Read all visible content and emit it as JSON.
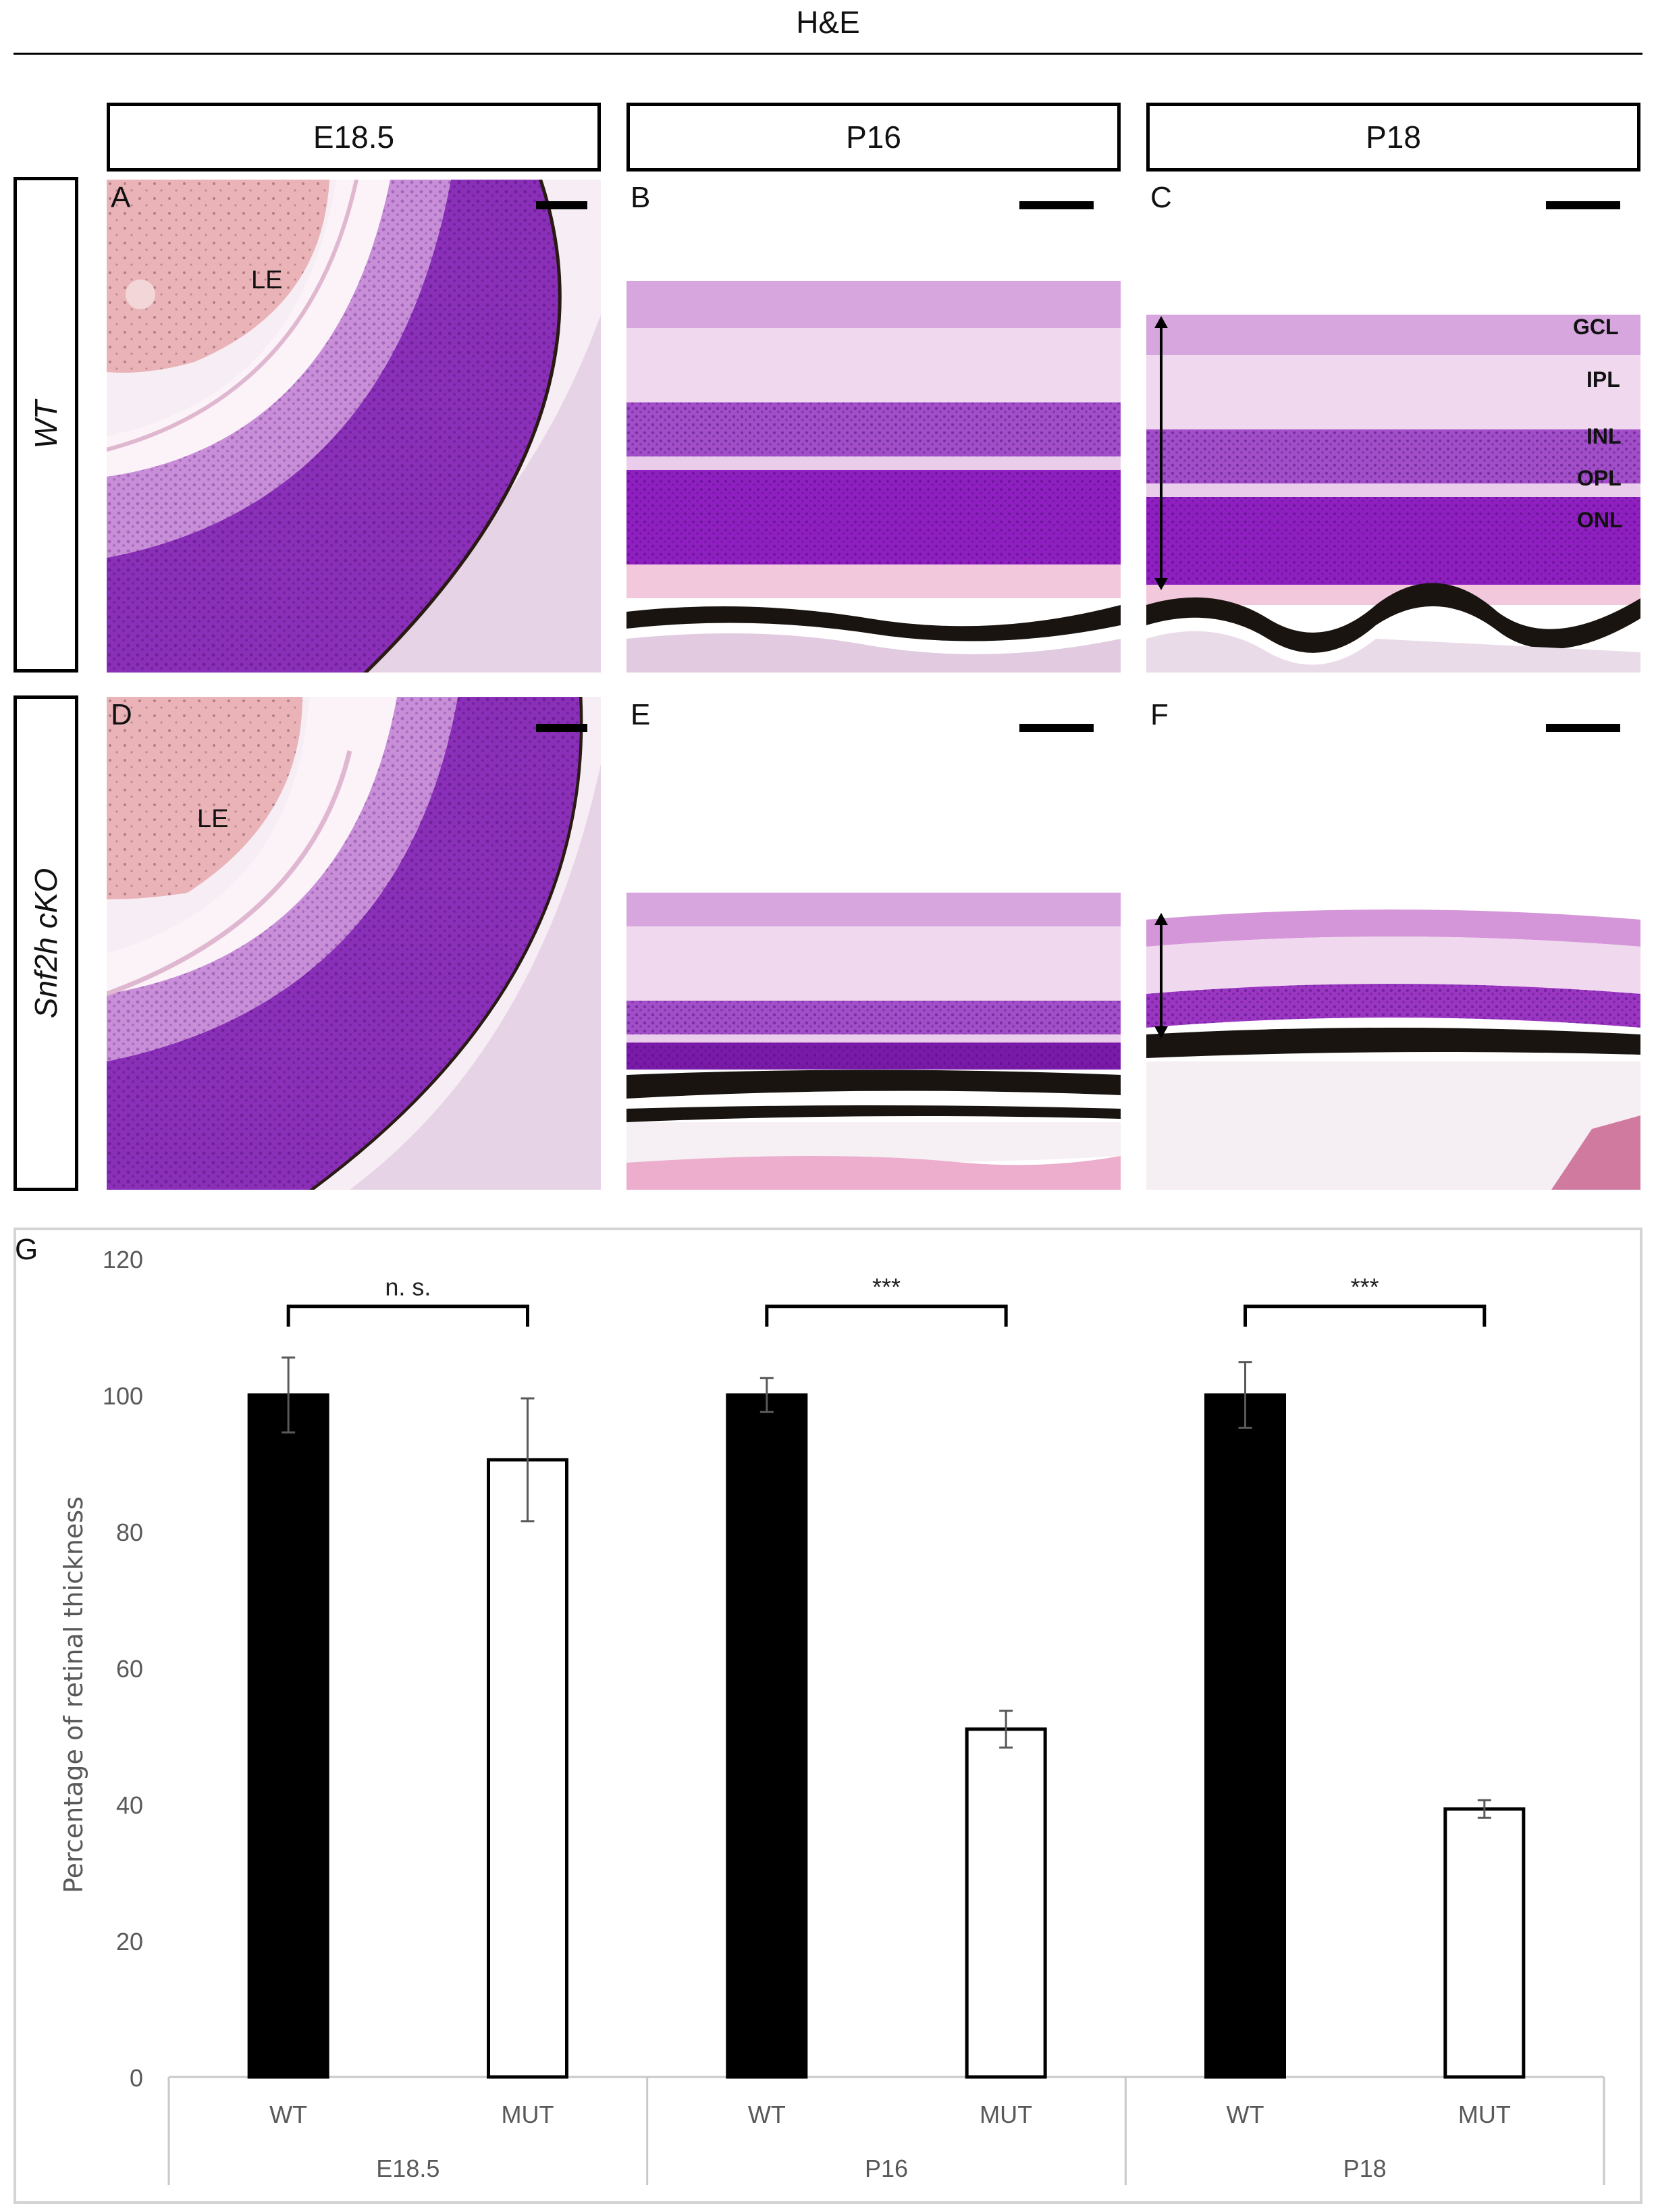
{
  "figure": {
    "title": "H&E",
    "columns": [
      "E18.5",
      "P16",
      "P18"
    ],
    "rows": [
      "WT",
      "Snf2h cKO"
    ],
    "panel_labels": [
      "A",
      "B",
      "C",
      "D",
      "E",
      "F"
    ],
    "lens_label": "LE",
    "layer_labels": [
      "GCL",
      "IPL",
      "INL",
      "OPL",
      "ONL"
    ]
  },
  "chart_label": "G",
  "chart_data": {
    "type": "bar",
    "ylabel": "Percentage of retinal thickness",
    "xlabel": "",
    "ylim": [
      0,
      120
    ],
    "yticks": [
      0,
      20,
      40,
      60,
      80,
      100,
      120
    ],
    "groups": [
      "E18.5",
      "P16",
      "P18"
    ],
    "bars": [
      {
        "group": "E18.5",
        "label": "WT",
        "value": 100,
        "error": 5.5,
        "fill": "#000000"
      },
      {
        "group": "E18.5",
        "label": "MUT",
        "value": 90.5,
        "error": 9.0,
        "fill": "#ffffff"
      },
      {
        "group": "P16",
        "label": "WT",
        "value": 100,
        "error": 2.5,
        "fill": "#000000"
      },
      {
        "group": "P16",
        "label": "MUT",
        "value": 51,
        "error": 2.7,
        "fill": "#ffffff"
      },
      {
        "group": "P18",
        "label": "WT",
        "value": 100,
        "error": 4.8,
        "fill": "#000000"
      },
      {
        "group": "P18",
        "label": "MUT",
        "value": 39.3,
        "error": 1.3,
        "fill": "#ffffff"
      }
    ],
    "significance": [
      {
        "group": "E18.5",
        "text": "n. s."
      },
      {
        "group": "P16",
        "text": "***"
      },
      {
        "group": "P18",
        "text": "***"
      }
    ]
  },
  "colors": {
    "tissue_purple": "#8a2fb8",
    "tissue_dark_purple": "#6a1f96",
    "tissue_pink": "#f2c9dc",
    "lens_pink": "#e9b3b8",
    "pigment_black": "#1a1410",
    "axis_gray": "#595959"
  }
}
